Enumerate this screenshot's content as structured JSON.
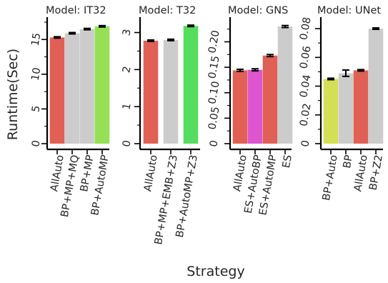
{
  "figure": {
    "ylabel": "Runtime(Sec)",
    "xlabel": "Strategy"
  },
  "colors": {
    "red": "#e06055",
    "grey": "#cccccc",
    "green": "#55dd5f",
    "lime": "#96e055",
    "pink": "#dd55cf",
    "yellowgreen": "#d3df55"
  },
  "chart_data": [
    {
      "type": "bar",
      "title": "Model: IT32",
      "categories": [
        "AllAuto",
        "BP+MP+MQ",
        "BP+MP",
        "BP+AutoMP"
      ],
      "values": [
        15.3,
        15.9,
        16.5,
        16.9
      ],
      "errors": [
        0.1,
        0.1,
        0.1,
        0.1
      ],
      "colors": [
        "red",
        "grey",
        "grey",
        "lime"
      ],
      "ylim": [
        0,
        17.6
      ],
      "yticks": [
        0,
        5,
        10,
        15
      ],
      "minor_step": 2.5,
      "grid": false
    },
    {
      "type": "bar",
      "title": "Model: T32",
      "categories": [
        "AllAuto",
        "BP+MP+EMB+Z3",
        "BP+AutoMP+Z3"
      ],
      "values": [
        2.78,
        2.8,
        3.18
      ],
      "errors": [
        0.02,
        0.02,
        0.02
      ],
      "colors": [
        "red",
        "grey",
        "green"
      ],
      "ylim": [
        0,
        3.3
      ],
      "yticks": [
        0,
        1,
        2,
        3
      ],
      "minor_step": 0.5,
      "grid": false
    },
    {
      "type": "bar",
      "title": "Model: GNS",
      "categories": [
        "AllAuto",
        "ES+AutoBP",
        "ES+AutoMP",
        "ES"
      ],
      "values": [
        0.144,
        0.145,
        0.173,
        0.23
      ],
      "errors": [
        0.002,
        0.002,
        0.002,
        0.002
      ],
      "colors": [
        "red",
        "pink",
        "red",
        "grey"
      ],
      "ylim": [
        0,
        0.24
      ],
      "yticks": [
        0,
        0.05,
        0.1,
        0.15,
        0.2
      ],
      "yticklabels": [
        "0",
        "0.05",
        "0.10",
        "0.15",
        "0.20"
      ],
      "minor_step": 0.025,
      "grid": false
    },
    {
      "type": "bar",
      "title": "Model: UNet",
      "categories": [
        "BP+Auto",
        "BP",
        "AllAuto",
        "BP+Z2"
      ],
      "values": [
        0.045,
        0.049,
        0.051,
        0.08
      ],
      "errors": [
        0.0005,
        0.0022,
        0.0005,
        0.0005
      ],
      "colors": [
        "yellowgreen",
        "grey",
        "red",
        "grey"
      ],
      "ylim": [
        0,
        0.085
      ],
      "yticks": [
        0,
        0.02,
        0.04,
        0.06,
        0.08
      ],
      "yticklabels": [
        "0",
        "0.02",
        "0.04",
        "0.06",
        "0.08"
      ],
      "minor_step": 0.01,
      "grid": false
    }
  ]
}
